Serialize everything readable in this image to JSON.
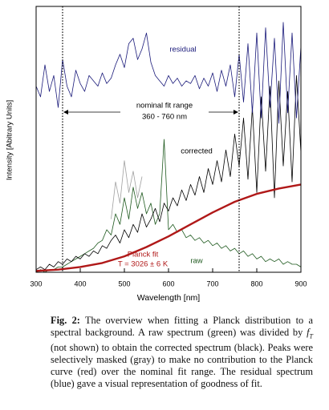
{
  "chart_data": {
    "type": "line",
    "xlabel": "Wavelength [nm]",
    "ylabel": "Intensity [Abitrary Units]",
    "xlim": [
      300,
      900
    ],
    "xticks": [
      300,
      400,
      500,
      600,
      700,
      800,
      900
    ],
    "ylim": [
      0,
      100
    ],
    "x": [
      300,
      310,
      320,
      330,
      340,
      350,
      360,
      370,
      380,
      390,
      400,
      410,
      420,
      430,
      440,
      450,
      460,
      470,
      480,
      490,
      500,
      510,
      520,
      530,
      540,
      550,
      560,
      570,
      580,
      590,
      600,
      610,
      620,
      630,
      640,
      650,
      660,
      670,
      680,
      690,
      700,
      710,
      720,
      730,
      740,
      750,
      760,
      770,
      780,
      790,
      800,
      810,
      820,
      830,
      840,
      850,
      860,
      870,
      880,
      890,
      900
    ],
    "series": [
      {
        "name": "raw",
        "color": "#1f5a1f",
        "values": [
          0,
          1,
          0,
          1,
          1,
          2,
          2,
          3,
          4,
          5,
          6,
          7,
          8,
          9,
          11,
          12,
          16,
          14,
          22,
          18,
          28,
          20,
          32,
          24,
          30,
          22,
          26,
          18,
          22,
          50,
          16,
          18,
          15,
          16,
          13,
          14,
          12,
          13,
          11,
          12,
          10,
          11,
          9,
          10,
          8,
          9,
          7,
          8,
          6,
          7,
          5,
          6,
          4,
          5,
          4,
          5,
          3,
          4,
          3,
          3,
          2
        ]
      },
      {
        "color": "#a0a0a0",
        "values": [
          null,
          null,
          null,
          null,
          null,
          null,
          null,
          null,
          null,
          null,
          null,
          null,
          null,
          null,
          null,
          null,
          null,
          20,
          34,
          26,
          42,
          30,
          38,
          28,
          36,
          null,
          null,
          null,
          null,
          null,
          null,
          null,
          null,
          null,
          null,
          null,
          null,
          null,
          null,
          null,
          null,
          null,
          null,
          null,
          null,
          null,
          null,
          null,
          null,
          null,
          null,
          null,
          null,
          null,
          null,
          null,
          null,
          null,
          null,
          null,
          null
        ]
      },
      {
        "name": "corrected",
        "color": "#000000",
        "values": [
          1,
          2,
          1,
          3,
          2,
          4,
          3,
          5,
          4,
          6,
          5,
          7,
          6,
          8,
          7,
          10,
          9,
          12,
          14,
          11,
          16,
          13,
          18,
          15,
          22,
          17,
          20,
          24,
          19,
          26,
          23,
          28,
          25,
          31,
          27,
          33,
          29,
          36,
          30,
          39,
          33,
          42,
          34,
          46,
          36,
          52,
          40,
          58,
          35,
          62,
          30,
          66,
          38,
          70,
          28,
          72,
          40,
          68,
          34,
          74,
          45
        ]
      },
      {
        "name": "Planck fit",
        "color": "#b01818",
        "x": [
          300,
          350,
          400,
          450,
          500,
          550,
          600,
          650,
          700,
          750,
          800,
          850,
          900
        ],
        "values": [
          0.5,
          1,
          2,
          3.5,
          6,
          9.5,
          13.5,
          18,
          22.5,
          26.5,
          29.5,
          31.5,
          33
        ]
      },
      {
        "name": "residual",
        "color": "#1a1a7a",
        "values": [
          70,
          66,
          78,
          68,
          74,
          62,
          80,
          70,
          66,
          76,
          71,
          68,
          74,
          72,
          70,
          75,
          71,
          73,
          78,
          82,
          77,
          86,
          88,
          80,
          84,
          90,
          79,
          74,
          72,
          70,
          74,
          71,
          73,
          70,
          72,
          71,
          74,
          69,
          73,
          70,
          75,
          68,
          76,
          70,
          78,
          66,
          82,
          64,
          86,
          60,
          90,
          58,
          92,
          62,
          88,
          56,
          94,
          60,
          90,
          58,
          85
        ]
      }
    ],
    "fit_range": [
      360,
      760
    ],
    "annotations": {
      "fit_range_title": "nominal fit range",
      "fit_range_text": "360 - 760 nm",
      "temperature": "T = 3026 ± 6 K"
    }
  },
  "caption": {
    "label": "Fig. 2:",
    "text1": "The overview when fitting a Planck distribution to a spectral background. A raw spectrum (green) was divided by",
    "math": "f",
    "sub": "T",
    "text2": "(not shown) to obtain the corrected spectrum (black). Peaks were selectively masked (gray) to make no contribution to the Planck curve (red) over the nominal fit range. The residual spectrum (blue) gave a visual representation of goodness of fit."
  }
}
